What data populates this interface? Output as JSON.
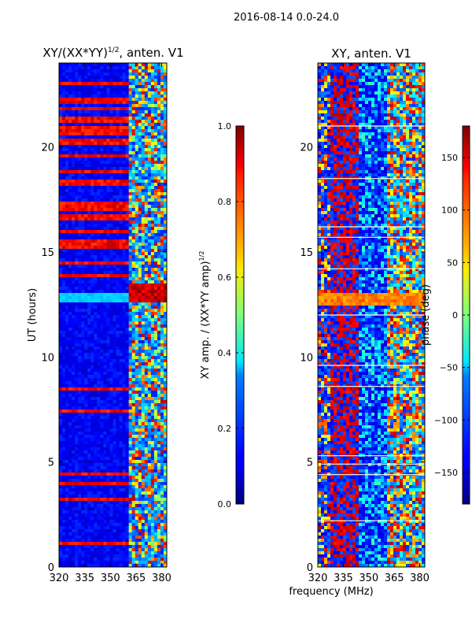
{
  "figure": {
    "suptitle": "2016-08-14 0.0-24.0"
  },
  "chart_data": [
    {
      "type": "heatmap",
      "title": "XY/(XX*YY)",
      "title_exponent": "1/2",
      "title_suffix": ", anten. V1",
      "xlabel": "",
      "ylabel": "UT (hours)",
      "xlim": [
        320,
        383
      ],
      "ylim": [
        0,
        24
      ],
      "xticks": [
        320,
        335,
        350,
        365,
        380
      ],
      "yticks": [
        0,
        5,
        10,
        15,
        20
      ],
      "colorbar": {
        "label": "XY amp. / (XX*YY amp)",
        "label_exponent": "1/2",
        "range": [
          0.0,
          1.0
        ],
        "ticks": [
          "0.0",
          "0.2",
          "0.4",
          "0.6",
          "0.8",
          "1.0"
        ],
        "tick_values": [
          0.0,
          0.2,
          0.4,
          0.6,
          0.8,
          1.0
        ]
      },
      "colormap": "jet"
    },
    {
      "type": "heatmap",
      "title": "XY, anten. V1",
      "xlabel": "frequency (MHz)",
      "ylabel": "",
      "xlim": [
        320,
        383
      ],
      "ylim": [
        0,
        24
      ],
      "xticks": [
        320,
        335,
        350,
        365,
        380
      ],
      "yticks": [
        0,
        5,
        10,
        15,
        20
      ],
      "colorbar": {
        "label": "phase (deg)",
        "range": [
          -180,
          180
        ],
        "ticks": [
          "150",
          "100",
          "50",
          "0",
          "−50",
          "−100",
          "−150"
        ],
        "tick_values": [
          150,
          100,
          50,
          0,
          -50,
          -100,
          -150
        ]
      },
      "colormap": "jet"
    }
  ]
}
